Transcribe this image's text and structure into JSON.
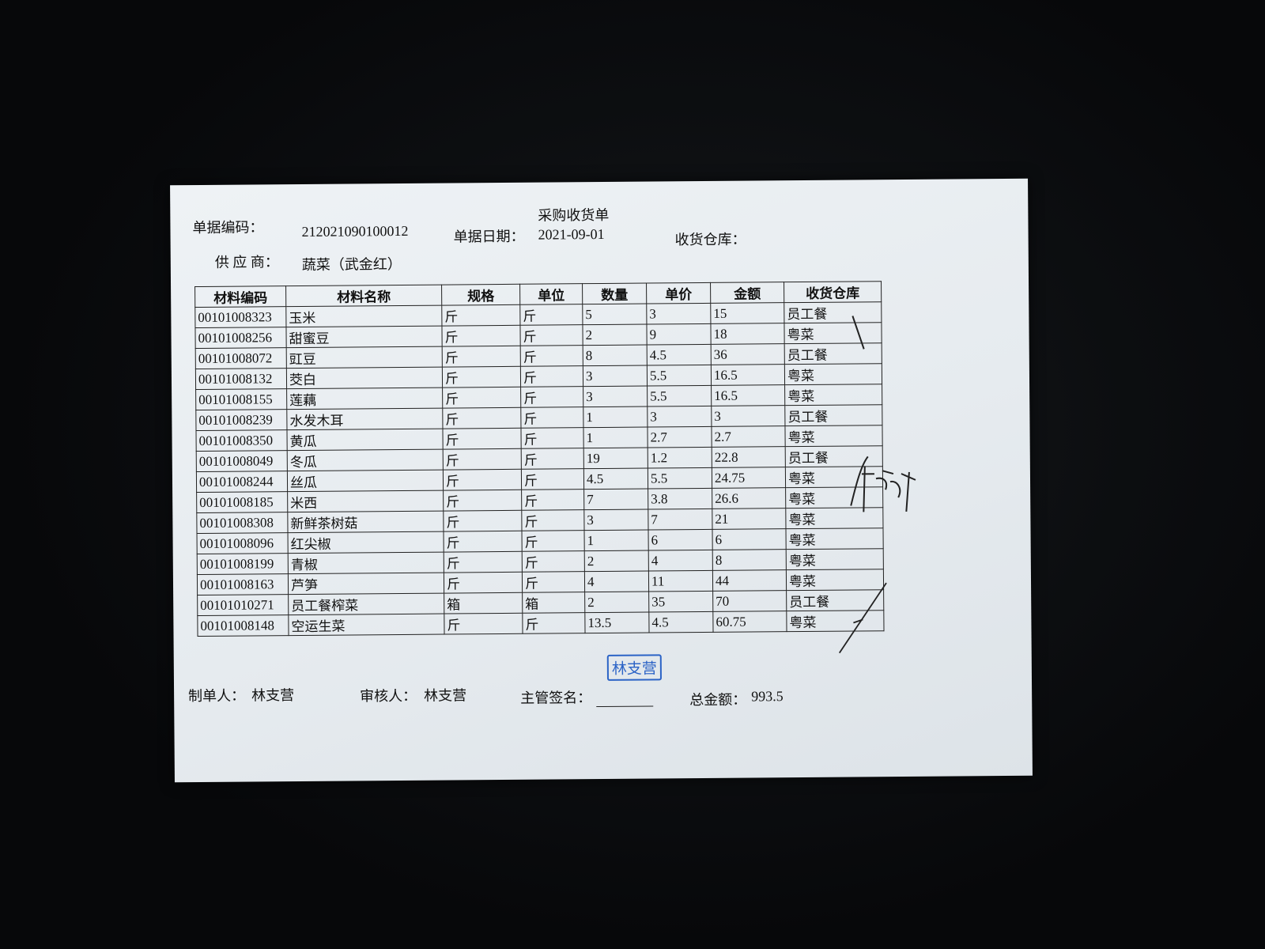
{
  "title": "采购收货单",
  "header": {
    "doc_no_label": "单据编码：",
    "doc_no": "212021090100012",
    "date_label": "单据日期：",
    "date": "2021-09-01",
    "warehouse_label": "收货仓库：",
    "supplier_label": "供 应 商：",
    "supplier": "蔬菜（武金红）"
  },
  "table": {
    "columns": [
      "材料编码",
      "材料名称",
      "规格",
      "单位",
      "数量",
      "单价",
      "金额",
      "收货仓库"
    ],
    "rows": [
      [
        "00101008323",
        "玉米",
        "斤",
        "斤",
        5,
        3,
        15,
        "员工餐"
      ],
      [
        "00101008256",
        "甜蜜豆",
        "斤",
        "斤",
        2,
        9,
        18,
        "粤菜"
      ],
      [
        "00101008072",
        "豇豆",
        "斤",
        "斤",
        8,
        4.5,
        36,
        "员工餐"
      ],
      [
        "00101008132",
        "茭白",
        "斤",
        "斤",
        3,
        5.5,
        16.5,
        "粤菜"
      ],
      [
        "00101008155",
        "莲藕",
        "斤",
        "斤",
        3,
        5.5,
        16.5,
        "粤菜"
      ],
      [
        "00101008239",
        "水发木耳",
        "斤",
        "斤",
        1,
        3,
        3,
        "员工餐"
      ],
      [
        "00101008350",
        "黄瓜",
        "斤",
        "斤",
        1,
        2.7,
        2.7,
        "粤菜"
      ],
      [
        "00101008049",
        "冬瓜",
        "斤",
        "斤",
        19,
        1.2,
        22.8,
        "员工餐"
      ],
      [
        "00101008244",
        "丝瓜",
        "斤",
        "斤",
        4.5,
        5.5,
        24.75,
        "粤菜"
      ],
      [
        "00101008185",
        "米西",
        "斤",
        "斤",
        7,
        3.8,
        26.6,
        "粤菜"
      ],
      [
        "00101008308",
        "新鲜茶树菇",
        "斤",
        "斤",
        3,
        7,
        21,
        "粤菜"
      ],
      [
        "00101008096",
        "红尖椒",
        "斤",
        "斤",
        1,
        6,
        6,
        "粤菜"
      ],
      [
        "00101008199",
        "青椒",
        "斤",
        "斤",
        2,
        4,
        8,
        "粤菜"
      ],
      [
        "00101008163",
        "芦笋",
        "斤",
        "斤",
        4,
        11,
        44,
        "粤菜"
      ],
      [
        "00101010271",
        "员工餐榨菜",
        "箱",
        "箱",
        2,
        35,
        70,
        "员工餐"
      ],
      [
        "00101008148",
        "空运生菜",
        "斤",
        "斤",
        13.5,
        4.5,
        60.75,
        "粤菜"
      ]
    ]
  },
  "stamp": "林支营",
  "footer": {
    "maker_label": "制单人：",
    "maker": "林支营",
    "reviewer_label": "审核人：",
    "reviewer": "林支营",
    "supervisor_label": "主管签名：",
    "total_label": "总金额：",
    "total": 993.5
  }
}
